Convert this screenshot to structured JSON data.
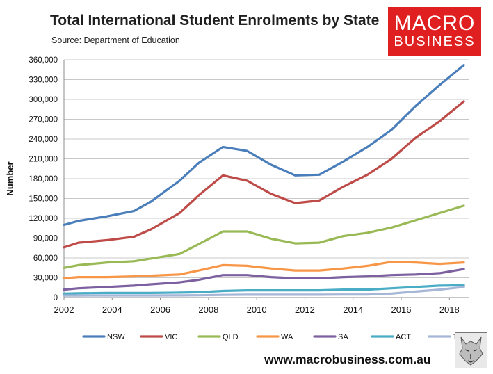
{
  "header": {
    "title": "Total International Student Enrolments by State",
    "source": "Source: Department of Education"
  },
  "logo": {
    "line1": "MACRO",
    "line2": "BUSINESS",
    "bg_color": "#e02020"
  },
  "footer": {
    "url": "www.macrobusiness.com.au",
    "badge_icon": "wolf-head-icon"
  },
  "chart_data": {
    "type": "line",
    "title": "Total International Student Enrolments by State",
    "subtitle": "Source: Department of Education",
    "xlabel": "",
    "ylabel": "Number",
    "xlim": [
      2002,
      2018.8
    ],
    "ylim": [
      0,
      360000
    ],
    "yticks": [
      0,
      30000,
      60000,
      90000,
      120000,
      150000,
      180000,
      210000,
      240000,
      270000,
      300000,
      330000,
      360000
    ],
    "ytick_labels": [
      "0",
      "30,000",
      "60,000",
      "90,000",
      "120,000",
      "150,000",
      "180,000",
      "210,000",
      "240,000",
      "270,000",
      "300,000",
      "330,000",
      "360,000"
    ],
    "xticks": [
      2002,
      2004,
      2006,
      2008,
      2010,
      2012,
      2014,
      2016,
      2018
    ],
    "xtick_labels": [
      "2002",
      "2004",
      "2006",
      "2008",
      "2010",
      "2012",
      "2014",
      "2016",
      "2018"
    ],
    "grid": "horizontal",
    "legend_position": "bottom",
    "x": [
      2002,
      2002.6,
      2003.8,
      2004.9,
      2005.6,
      2006.8,
      2007.6,
      2008.6,
      2009.6,
      2010.6,
      2011.6,
      2012.6,
      2013.6,
      2014.6,
      2015.6,
      2016.6,
      2017.6,
      2018.6
    ],
    "series": [
      {
        "name": "NSW",
        "color": "#4a7ebb",
        "values": [
          110000,
          116000,
          123000,
          131000,
          145000,
          177000,
          204000,
          228000,
          222000,
          201000,
          185000,
          186000,
          206000,
          228000,
          254000,
          290000,
          322000,
          352000
        ]
      },
      {
        "name": "VIC",
        "color": "#be4b48",
        "values": [
          76000,
          83000,
          87000,
          92000,
          103000,
          128000,
          155000,
          185000,
          177000,
          157000,
          143000,
          147000,
          168000,
          186000,
          210000,
          242000,
          267000,
          297000
        ]
      },
      {
        "name": "QLD",
        "color": "#98b954",
        "values": [
          45000,
          49000,
          53000,
          55000,
          59000,
          66000,
          81000,
          100000,
          100000,
          89000,
          82000,
          83000,
          93000,
          98000,
          106000,
          117000,
          128000,
          139000
        ]
      },
      {
        "name": "WA",
        "color": "#f79646",
        "values": [
          29000,
          31000,
          31000,
          32000,
          33000,
          35000,
          41000,
          49000,
          48000,
          44000,
          41000,
          41000,
          44000,
          48000,
          54000,
          53000,
          51000,
          53000
        ]
      },
      {
        "name": "SA",
        "color": "#7d60a0",
        "values": [
          12000,
          14000,
          16000,
          18000,
          20000,
          23000,
          27000,
          34000,
          34000,
          31000,
          29000,
          29000,
          31000,
          32000,
          34000,
          35000,
          37000,
          43000
        ]
      },
      {
        "name": "ACT",
        "color": "#4bacc6",
        "values": [
          6000,
          6500,
          7000,
          7000,
          7000,
          7500,
          8000,
          10000,
          11000,
          11000,
          11000,
          11000,
          12000,
          12000,
          14000,
          16000,
          18000,
          18500
        ]
      },
      {
        "name": "TAS",
        "color": "#a5b6d6",
        "values": [
          3000,
          3000,
          3200,
          3200,
          3200,
          3300,
          3500,
          4000,
          4300,
          4300,
          4300,
          4300,
          4500,
          4500,
          6000,
          9000,
          12000,
          16000
        ]
      }
    ]
  }
}
